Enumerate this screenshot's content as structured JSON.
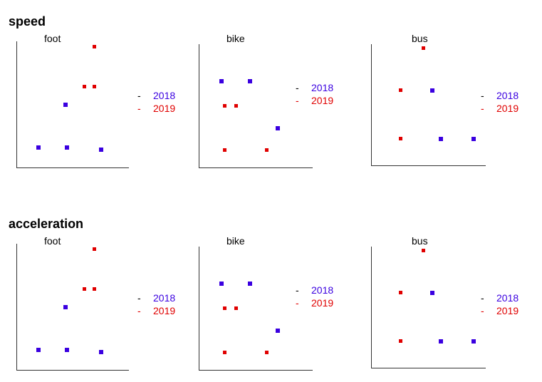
{
  "sections": [
    {
      "title": "speed"
    },
    {
      "title": "acceleration"
    }
  ],
  "colors": {
    "2018": "#3a00e0",
    "2019": "#e00000"
  },
  "legend": [
    {
      "label": "2018",
      "color": "#3a00e0"
    },
    {
      "label": "2019",
      "color": "#e00000"
    }
  ],
  "chart_data": [
    {
      "type": "scatter",
      "section": "speed",
      "title": "foot",
      "xlabel": "",
      "ylabel": "",
      "xlim": [
        0,
        10
      ],
      "ylim": [
        0,
        10
      ],
      "grid": false,
      "series": [
        {
          "name": "2018",
          "points": [
            [
              2.0,
              1.6
            ],
            [
              4.5,
              1.6
            ],
            [
              7.6,
              1.4
            ],
            [
              4.4,
              5.0
            ]
          ]
        },
        {
          "name": "2019",
          "points": [
            [
              6.1,
              6.4
            ],
            [
              7.0,
              6.4
            ],
            [
              7.0,
              9.6
            ]
          ]
        }
      ]
    },
    {
      "type": "scatter",
      "section": "speed",
      "title": "bike",
      "xlabel": "",
      "ylabel": "",
      "xlim": [
        0,
        10
      ],
      "ylim": [
        0,
        10
      ],
      "grid": false,
      "series": [
        {
          "name": "2018",
          "points": [
            [
              2.0,
              7.0
            ],
            [
              4.5,
              7.0
            ],
            [
              7.0,
              3.2
            ]
          ]
        },
        {
          "name": "2019",
          "points": [
            [
              2.3,
              5.0
            ],
            [
              3.3,
              5.0
            ],
            [
              2.3,
              1.4
            ],
            [
              6.0,
              1.4
            ]
          ]
        }
      ]
    },
    {
      "type": "scatter",
      "section": "speed",
      "title": "bus",
      "xlabel": "",
      "ylabel": "",
      "xlim": [
        0,
        10
      ],
      "ylim": [
        0,
        10
      ],
      "grid": false,
      "series": [
        {
          "name": "2018",
          "points": [
            [
              5.4,
              6.2
            ],
            [
              6.1,
              2.2
            ],
            [
              9.0,
              2.2
            ]
          ]
        },
        {
          "name": "2019",
          "points": [
            [
              2.6,
              6.2
            ],
            [
              4.6,
              9.7
            ],
            [
              2.6,
              2.2
            ]
          ]
        }
      ]
    },
    {
      "type": "scatter",
      "section": "acceleration",
      "title": "foot",
      "xlabel": "",
      "ylabel": "",
      "xlim": [
        0,
        10
      ],
      "ylim": [
        0,
        10
      ],
      "grid": false,
      "series": [
        {
          "name": "2018",
          "points": [
            [
              2.0,
              1.6
            ],
            [
              4.5,
              1.6
            ],
            [
              7.6,
              1.4
            ],
            [
              4.4,
              5.0
            ]
          ]
        },
        {
          "name": "2019",
          "points": [
            [
              6.1,
              6.4
            ],
            [
              7.0,
              6.4
            ],
            [
              7.0,
              9.6
            ]
          ]
        }
      ]
    },
    {
      "type": "scatter",
      "section": "acceleration",
      "title": "bike",
      "xlabel": "",
      "ylabel": "",
      "xlim": [
        0,
        10
      ],
      "ylim": [
        0,
        10
      ],
      "grid": false,
      "series": [
        {
          "name": "2018",
          "points": [
            [
              2.0,
              7.0
            ],
            [
              4.5,
              7.0
            ],
            [
              7.0,
              3.2
            ]
          ]
        },
        {
          "name": "2019",
          "points": [
            [
              2.3,
              5.0
            ],
            [
              3.3,
              5.0
            ],
            [
              2.3,
              1.4
            ],
            [
              6.0,
              1.4
            ]
          ]
        }
      ]
    },
    {
      "type": "scatter",
      "section": "acceleration",
      "title": "bus",
      "xlabel": "",
      "ylabel": "",
      "xlim": [
        0,
        10
      ],
      "ylim": [
        0,
        10
      ],
      "grid": false,
      "series": [
        {
          "name": "2018",
          "points": [
            [
              5.4,
              6.2
            ],
            [
              6.1,
              2.2
            ],
            [
              9.0,
              2.2
            ]
          ]
        },
        {
          "name": "2019",
          "points": [
            [
              2.6,
              6.2
            ],
            [
              4.6,
              9.7
            ],
            [
              2.6,
              2.2
            ]
          ]
        }
      ]
    }
  ]
}
